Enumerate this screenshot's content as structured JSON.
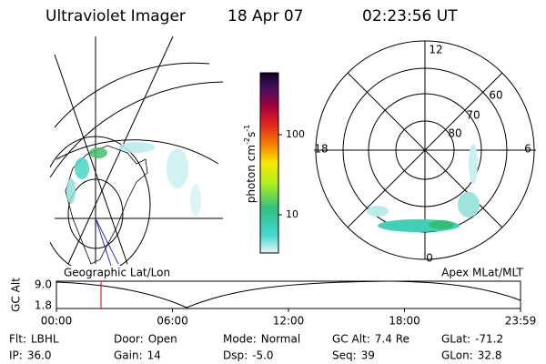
{
  "header": {
    "title": "Ultraviolet Imager",
    "date": "18 Apr 07",
    "time": "02:23:56 UT"
  },
  "colorbar": {
    "label": {
      "base": "photon cm",
      "exp1": "-2",
      "unit": "s",
      "exp2": "-1"
    },
    "ticks": [
      "100",
      "10"
    ]
  },
  "polar_plot": {
    "mlt_labels": [
      "12",
      "18",
      "6",
      "0"
    ],
    "lat_labels": [
      "60",
      "70",
      "80"
    ]
  },
  "captions": {
    "left": "Geographic Lat/Lon",
    "right": "Apex MLat/MLT"
  },
  "timeline": {
    "y_label": "GC Alt",
    "yticks": [
      "9.0",
      "1.8"
    ],
    "xticks": [
      "00:00",
      "06:00",
      "12:00",
      "18:00",
      "23:59"
    ]
  },
  "footer": {
    "rows": [
      [
        {
          "label": "Flt:",
          "value": "LBHL"
        },
        {
          "label": "Door:",
          "value": "Open"
        },
        {
          "label": "Mode:",
          "value": "Normal"
        },
        {
          "label": "GC Alt:",
          "value": "7.4 Re"
        },
        {
          "label": "GLat:",
          "value": "-71.2"
        }
      ],
      [
        {
          "label": "IP:",
          "value": "36.0"
        },
        {
          "label": "Gain:",
          "value": "14"
        },
        {
          "label": "Dsp:",
          "value": "-5.0"
        },
        {
          "label": "Seq:",
          "value": "39"
        },
        {
          "label": "GLon:",
          "value": "32.8"
        }
      ]
    ]
  }
}
